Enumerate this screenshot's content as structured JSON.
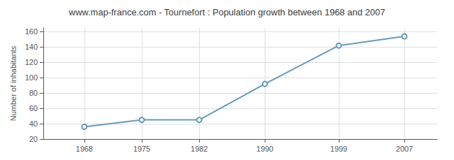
{
  "chart_data": {
    "type": "line",
    "title": "www.map-france.com - Tournefort : Population growth between 1968 and 2007",
    "ylabel": "Number of inhabitants",
    "x": [
      1968,
      1975,
      1982,
      1990,
      1999,
      2007
    ],
    "values": [
      36,
      45,
      45,
      92,
      142,
      154
    ],
    "color": "#6699bb",
    "marker": "circle",
    "xlim": [
      1963,
      2011
    ],
    "xticks": [
      1968,
      1975,
      1982,
      1990,
      1999,
      2007
    ],
    "ylim": [
      20,
      165
    ],
    "yticks": [
      20,
      40,
      60,
      80,
      100,
      120,
      140,
      160
    ],
    "grid": true
  }
}
